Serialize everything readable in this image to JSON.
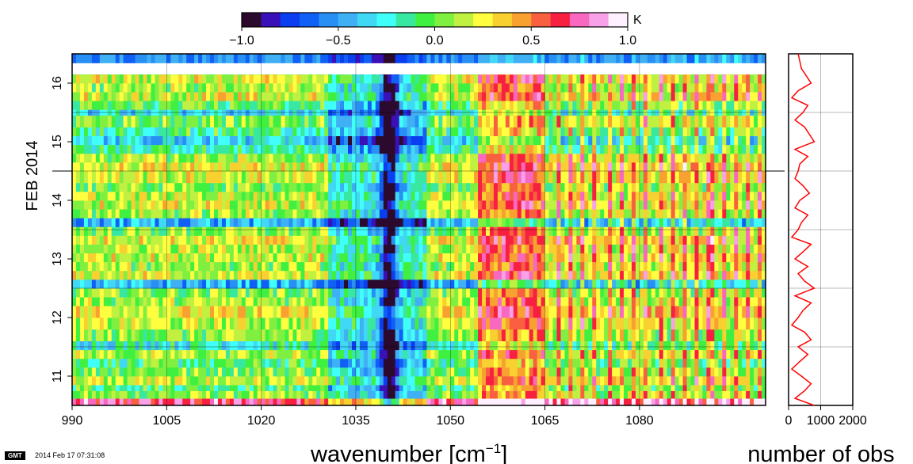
{
  "chart_data": [
    {
      "type": "heatmap",
      "xlabel": "wavenumber [cm",
      "xlabel_sup": "−1",
      "xlabel_close": "]",
      "ylabel": "FEB 2014",
      "xlim": [
        990,
        1100
      ],
      "ylim": [
        10.5,
        16.5
      ],
      "x_ticks": [
        990,
        1005,
        1020,
        1035,
        1050,
        1065,
        1080
      ],
      "x_tick_labels": [
        "990",
        "1005",
        "1020",
        "1035",
        "1050",
        "1065",
        "1080"
      ],
      "y_ticks": [
        11,
        12,
        13,
        14,
        15,
        16
      ],
      "y_tick_labels": [
        "11",
        "12",
        "13",
        "14",
        "15",
        "16"
      ],
      "grid": true,
      "colorbar": {
        "unit": "K",
        "range": [
          -1.0,
          1.0
        ],
        "ticks": [
          -1.0,
          -0.5,
          0.0,
          0.5,
          1.0
        ],
        "tick_labels": [
          "−1.0",
          "−0.5",
          "0.0",
          "0.5",
          "1.0"
        ],
        "colors": [
          "#2b0a2e",
          "#3a10b8",
          "#0a3ef0",
          "#1060f5",
          "#2890f5",
          "#40b0f5",
          "#40d8f5",
          "#40fff8",
          "#38e8a0",
          "#40f040",
          "#80f040",
          "#c0f040",
          "#ffff40",
          "#f8d030",
          "#f8a030",
          "#f86040",
          "#f82040",
          "#f868c0",
          "#f8a0e8",
          "#fff0ff"
        ]
      },
      "value_rows": [
        {
          "t": 10.5,
          "b": 0.7
        },
        {
          "t": 10.62,
          "b": 0.05
        },
        {
          "t": 10.75,
          "b": -0.05
        },
        {
          "t": 10.85,
          "b": 0.15
        },
        {
          "t": 11.0,
          "b": 0.05
        },
        {
          "t": 11.15,
          "b": -0.1
        },
        {
          "t": 11.3,
          "b": 0.1
        },
        {
          "t": 11.45,
          "b": -0.2
        },
        {
          "t": 11.6,
          "b": 0.05
        },
        {
          "t": 11.8,
          "b": 0.15
        },
        {
          "t": 12.0,
          "b": 0.25
        },
        {
          "t": 12.2,
          "b": 0.1
        },
        {
          "t": 12.35,
          "b": 0.05
        },
        {
          "t": 12.5,
          "b": -0.45
        },
        {
          "t": 12.65,
          "b": 0.2
        },
        {
          "t": 12.8,
          "b": 0.1
        },
        {
          "t": 12.95,
          "b": 0.2
        },
        {
          "t": 13.1,
          "b": 0.15
        },
        {
          "t": 13.25,
          "b": 0.25
        },
        {
          "t": 13.4,
          "b": 0.05
        },
        {
          "t": 13.55,
          "b": -0.45
        },
        {
          "t": 13.7,
          "b": 0.1
        },
        {
          "t": 13.85,
          "b": 0.2
        },
        {
          "t": 14.0,
          "b": 0.15
        },
        {
          "t": 14.15,
          "b": 0.05
        },
        {
          "t": 14.3,
          "b": 0.2
        },
        {
          "t": 14.5,
          "b": 0.25
        },
        {
          "t": 14.65,
          "b": 0.1
        },
        {
          "t": 14.8,
          "b": -0.15
        },
        {
          "t": 14.95,
          "b": -0.35
        },
        {
          "t": 15.1,
          "b": -0.1
        },
        {
          "t": 15.25,
          "b": 0.05
        },
        {
          "t": 15.45,
          "b": -0.3
        },
        {
          "t": 15.55,
          "b": -0.05
        },
        {
          "t": 15.7,
          "b": 0.2
        },
        {
          "t": 15.85,
          "b": 0.1
        },
        {
          "t": 16.0,
          "b": 0.2
        },
        {
          "t": 16.15,
          "b": 0.0
        }
      ],
      "gap_rows": [
        [
          16.15,
          16.34
        ]
      ],
      "top_row": {
        "t": 16.34,
        "b": -0.55
      },
      "spectral_features": {
        "ozone_band_center": 1040,
        "ozone_band_anomaly": -0.75,
        "warm_band_range": [
          1054,
          1064
        ],
        "warm_band_anomaly": 0.6
      }
    },
    {
      "type": "line",
      "xlabel": "number of obs",
      "xlim": [
        0,
        2000
      ],
      "x_ticks": [
        0,
        1000,
        2000
      ],
      "x_tick_labels": [
        "0",
        "1000",
        "2000"
      ],
      "ylim": [
        10.5,
        16.5
      ],
      "color": "#ff0000",
      "x": [
        800,
        200,
        500,
        700,
        400,
        100,
        350,
        600,
        300,
        700,
        500,
        100,
        300,
        450,
        700,
        200,
        800,
        500,
        300,
        600,
        200,
        450,
        700,
        100,
        300,
        400,
        600,
        200,
        350,
        650,
        450,
        200,
        300,
        350,
        600,
        200,
        800,
        500,
        200,
        450,
        600,
        100,
        300,
        700,
        400,
        300
      ],
      "y": [
        10.5,
        10.62,
        10.75,
        10.87,
        11.0,
        11.12,
        11.25,
        11.37,
        11.5,
        11.62,
        11.75,
        11.87,
        12.0,
        12.12,
        12.25,
        12.37,
        12.5,
        12.62,
        12.75,
        12.87,
        13.0,
        13.12,
        13.25,
        13.37,
        13.5,
        13.62,
        13.75,
        13.87,
        14.0,
        14.12,
        14.25,
        14.37,
        14.5,
        14.62,
        14.75,
        14.87,
        15.0,
        15.25,
        15.37,
        15.5,
        15.62,
        15.75,
        15.87,
        16.0,
        16.25,
        16.5
      ]
    }
  ],
  "footer": {
    "badge": "GMT",
    "timestamp": "2014 Feb 17 07:31:08"
  }
}
